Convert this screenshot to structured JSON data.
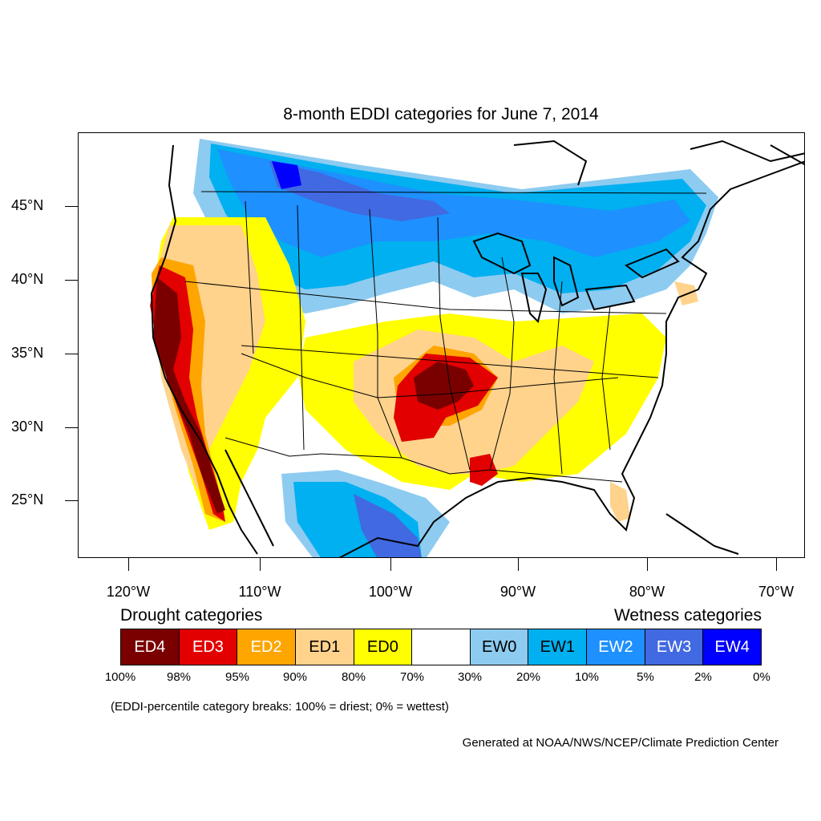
{
  "title": "8-month EDDI categories for June 7, 2014",
  "lat_labels": [
    "45°N",
    "40°N",
    "35°N",
    "30°N",
    "25°N"
  ],
  "lon_labels": [
    "120°W",
    "110°W",
    "100°W",
    "90°W",
    "80°W",
    "70°W"
  ],
  "legend": {
    "drought_heading": "Drought categories",
    "wetness_heading": "Wetness categories",
    "categories": [
      {
        "label": "ED4",
        "color": "#7a0000",
        "text_color": "#ffffff"
      },
      {
        "label": "ED3",
        "color": "#e20000",
        "text_color": "#ffffff"
      },
      {
        "label": "ED2",
        "color": "#ffa500",
        "text_color": "#ffffff"
      },
      {
        "label": "ED1",
        "color": "#ffd38c",
        "text_color": "#000000"
      },
      {
        "label": "ED0",
        "color": "#ffff00",
        "text_color": "#000000"
      },
      {
        "label": "",
        "color": "#ffffff",
        "text_color": "#000000"
      },
      {
        "label": "EW0",
        "color": "#8ecbf0",
        "text_color": "#000000"
      },
      {
        "label": "EW1",
        "color": "#00b0f0",
        "text_color": "#000000"
      },
      {
        "label": "EW2",
        "color": "#1e90ff",
        "text_color": "#ffffff"
      },
      {
        "label": "EW3",
        "color": "#4169e1",
        "text_color": "#ffffff"
      },
      {
        "label": "EW4",
        "color": "#0000ff",
        "text_color": "#ffffff"
      }
    ],
    "breaks": [
      "100%",
      "98%",
      "95%",
      "90%",
      "80%",
      "70%",
      "30%",
      "20%",
      "10%",
      "5%",
      "2%",
      "0%"
    ],
    "note": "(EDDI-percentile category breaks: 100% = driest; 0% = wettest)"
  },
  "credit": "Generated at NOAA/NWS/NCEP/Climate Prediction Center"
}
